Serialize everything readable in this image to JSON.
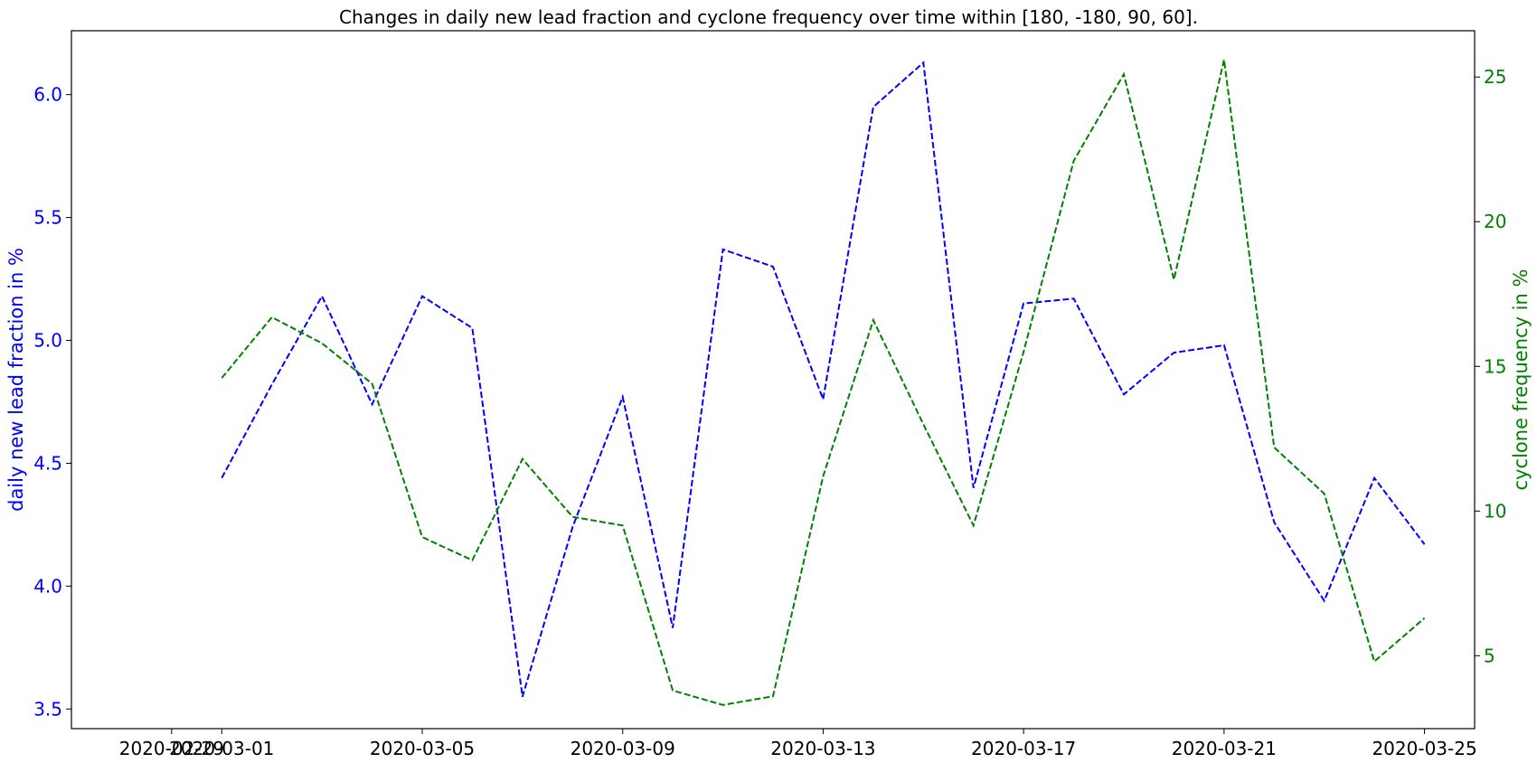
{
  "chart_data": {
    "type": "line",
    "title": "Changes in daily new lead fraction and cyclone frequency over time within [180, -180, 90, 60].",
    "x": [
      "2020-03-01",
      "2020-03-02",
      "2020-03-03",
      "2020-03-04",
      "2020-03-05",
      "2020-03-06",
      "2020-03-07",
      "2020-03-08",
      "2020-03-09",
      "2020-03-10",
      "2020-03-11",
      "2020-03-12",
      "2020-03-13",
      "2020-03-14",
      "2020-03-15",
      "2020-03-16",
      "2020-03-17",
      "2020-03-18",
      "2020-03-19",
      "2020-03-20",
      "2020-03-21",
      "2020-03-22",
      "2020-03-23",
      "2020-03-24",
      "2020-03-25"
    ],
    "xticks": [
      "2020-02-29",
      "2020-03-01",
      "2020-03-05",
      "2020-03-09",
      "2020-03-13",
      "2020-03-17",
      "2020-03-21",
      "2020-03-25"
    ],
    "xlim": [
      "2020-02-27",
      "2020-03-26"
    ],
    "series": [
      {
        "axis": "left",
        "color": "#0000ff",
        "style": "dashed",
        "values": [
          4.44,
          4.82,
          5.18,
          4.74,
          5.18,
          5.05,
          3.55,
          4.24,
          4.77,
          3.83,
          5.37,
          5.3,
          4.76,
          5.95,
          6.13,
          4.4,
          5.15,
          5.17,
          4.78,
          4.95,
          4.98,
          4.26,
          3.94,
          4.44,
          4.17
        ]
      },
      {
        "axis": "right",
        "color": "#008000",
        "style": "dashed",
        "values": [
          14.6,
          16.7,
          15.8,
          14.4,
          9.1,
          8.3,
          11.8,
          9.8,
          9.5,
          3.8,
          3.3,
          3.6,
          11.2,
          16.6,
          13.0,
          9.5,
          15.5,
          22.1,
          25.1,
          18.0,
          25.6,
          12.2,
          10.6,
          4.8,
          6.3
        ]
      }
    ],
    "left_axis": {
      "label": "daily new lead fraction in %",
      "color": "#0000ff",
      "ticks": [
        "3.5",
        "4.0",
        "4.5",
        "5.0",
        "5.5",
        "6.0"
      ],
      "ylim": [
        3.42,
        6.26
      ]
    },
    "right_axis": {
      "label": "cyclone frequency in %",
      "color": "#008000",
      "ticks": [
        "5",
        "10",
        "15",
        "20",
        "25"
      ],
      "ylim": [
        2.48,
        26.6
      ]
    },
    "grid": false,
    "legend": "none"
  }
}
